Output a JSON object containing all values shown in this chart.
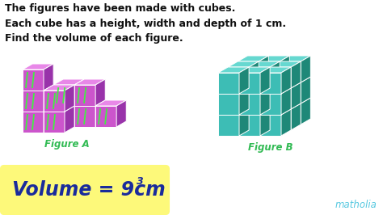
{
  "bg_color": "#ffffff",
  "title_lines": [
    "The figures have been made with cubes.",
    "Each cube has a height, width and depth of 1 cm.",
    "Find the volume of each figure."
  ],
  "title_fontsize": 9.0,
  "figure_a_label": "Figure A",
  "figure_b_label": "Figure B",
  "label_color": "#33bb55",
  "label_fontsize": 8.5,
  "volume_box_color": "#fdf97a",
  "volume_text_color": "#1a2b9c",
  "volume_fontsize": 17,
  "matholia_text": "matholia",
  "matholia_color": "#55c8e0",
  "matholia_fontsize": 8.5,
  "purple_face": "#cc55cc",
  "purple_top": "#e888e8",
  "purple_side": "#9933aa",
  "teal_face": "#3dbdb5",
  "teal_top": "#66d8d0",
  "teal_side": "#1e8878"
}
